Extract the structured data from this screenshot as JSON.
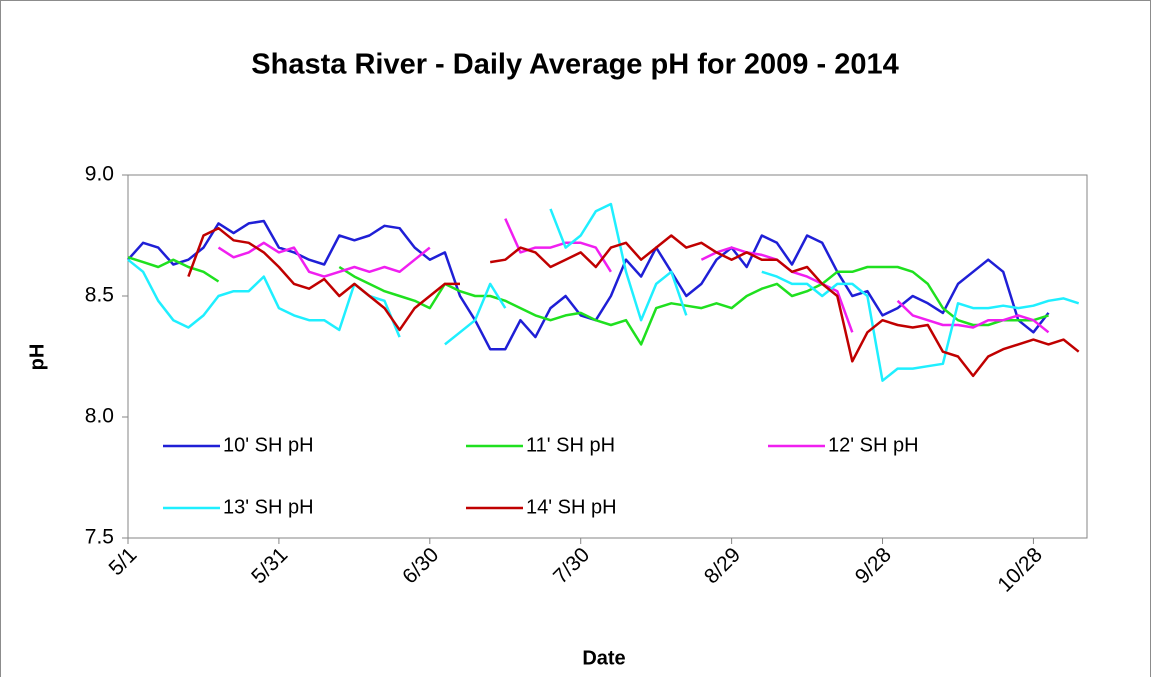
{
  "chart_data": {
    "type": "line",
    "title": "Shasta River - Daily Average pH for 2009 - 2014",
    "x_label": "Date",
    "y_label": "pH",
    "ylim": [
      7.5,
      9
    ],
    "yticks": [
      7.5,
      {
        "value": 8,
        "label": "8.0"
      },
      8.5,
      {
        "value": 9,
        "label": "9.0"
      }
    ],
    "categories": [
      "5/1",
      null,
      null,
      null,
      null,
      null,
      null,
      null,
      null,
      null,
      "5/31",
      null,
      null,
      null,
      null,
      null,
      null,
      null,
      null,
      null,
      "6/30",
      null,
      null,
      null,
      null,
      null,
      null,
      null,
      null,
      null,
      "7/30",
      null,
      null,
      null,
      null,
      null,
      null,
      null,
      null,
      null,
      "8/29",
      null,
      null,
      null,
      null,
      null,
      null,
      null,
      null,
      null,
      "9/28",
      null,
      null,
      null,
      null,
      null,
      null,
      null,
      null,
      null,
      "10/28",
      null,
      null,
      null
    ],
    "series": [
      {
        "name": "10' SH pH",
        "color": "#1f1fd6",
        "values": [
          8.65,
          8.72,
          8.7,
          8.63,
          8.65,
          8.7,
          8.8,
          8.76,
          8.8,
          8.81,
          8.7,
          8.68,
          8.65,
          8.63,
          8.75,
          8.73,
          8.75,
          8.79,
          8.78,
          8.7,
          8.65,
          8.68,
          8.5,
          8.4,
          8.28,
          8.28,
          8.4,
          8.33,
          8.45,
          8.5,
          8.42,
          8.4,
          8.5,
          8.65,
          8.58,
          8.7,
          8.6,
          8.5,
          8.55,
          8.65,
          8.7,
          8.62,
          8.75,
          8.72,
          8.63,
          8.75,
          8.72,
          8.6,
          8.5,
          8.52,
          8.42,
          8.45,
          8.5,
          8.47,
          8.43,
          8.55,
          8.6,
          8.65,
          8.6,
          8.4,
          8.35,
          8.43,
          null,
          null
        ]
      },
      {
        "name": "11' SH pH",
        "color": "#1fe01f",
        "values": [
          8.66,
          8.64,
          8.62,
          8.65,
          8.62,
          8.6,
          8.56,
          null,
          null,
          null,
          null,
          null,
          null,
          null,
          8.62,
          8.58,
          8.55,
          8.52,
          8.5,
          8.48,
          8.45,
          8.55,
          8.52,
          8.5,
          8.5,
          8.48,
          8.45,
          8.42,
          8.4,
          8.42,
          8.43,
          8.4,
          8.38,
          8.4,
          8.3,
          8.45,
          8.47,
          8.46,
          8.45,
          8.47,
          8.45,
          8.5,
          8.53,
          8.55,
          8.5,
          8.52,
          8.55,
          8.6,
          8.6,
          8.62,
          8.62,
          8.62,
          8.6,
          8.55,
          8.45,
          8.4,
          8.38,
          8.38,
          8.4,
          8.4,
          8.4,
          8.42,
          null,
          null
        ]
      },
      {
        "name": "12' SH pH",
        "color": "#f01ff0",
        "values": [
          null,
          null,
          null,
          null,
          null,
          null,
          8.7,
          8.66,
          8.68,
          8.72,
          8.68,
          8.7,
          8.6,
          8.58,
          8.6,
          8.62,
          8.6,
          8.62,
          8.6,
          8.65,
          8.7,
          null,
          null,
          null,
          null,
          8.82,
          8.68,
          8.7,
          8.7,
          8.72,
          8.72,
          8.7,
          8.6,
          null,
          null,
          null,
          null,
          null,
          8.65,
          8.68,
          8.7,
          8.68,
          8.67,
          8.65,
          8.6,
          8.58,
          8.55,
          8.52,
          8.35,
          null,
          null,
          8.48,
          8.42,
          8.4,
          8.38,
          8.38,
          8.37,
          8.4,
          8.4,
          8.42,
          8.4,
          8.35,
          null,
          null
        ]
      },
      {
        "name": "13' SH pH",
        "color": "#1fefff",
        "values": [
          8.65,
          8.6,
          8.48,
          8.4,
          8.37,
          8.42,
          8.5,
          8.52,
          8.52,
          8.58,
          8.45,
          8.42,
          8.4,
          8.4,
          8.36,
          8.55,
          8.5,
          8.48,
          8.33,
          null,
          null,
          8.3,
          8.35,
          8.4,
          8.55,
          8.45,
          null,
          null,
          8.86,
          8.7,
          8.75,
          8.85,
          8.88,
          8.6,
          8.4,
          8.55,
          8.6,
          8.42,
          null,
          null,
          null,
          null,
          8.6,
          8.58,
          8.55,
          8.55,
          8.5,
          8.55,
          8.55,
          8.5,
          8.15,
          8.2,
          8.2,
          8.21,
          8.22,
          8.47,
          8.45,
          8.45,
          8.46,
          8.45,
          8.46,
          8.48,
          8.49,
          8.47
        ]
      },
      {
        "name": "14' SH pH",
        "color": "#c00000",
        "values": [
          null,
          null,
          null,
          null,
          8.58,
          8.75,
          8.78,
          8.73,
          8.72,
          8.68,
          8.62,
          8.55,
          8.53,
          8.57,
          8.5,
          8.55,
          8.5,
          8.45,
          8.36,
          8.45,
          8.5,
          8.55,
          8.55,
          null,
          8.64,
          8.65,
          8.7,
          8.68,
          8.62,
          8.65,
          8.68,
          8.62,
          8.7,
          8.72,
          8.65,
          8.7,
          8.75,
          8.7,
          8.72,
          8.68,
          8.65,
          8.68,
          8.65,
          8.65,
          8.6,
          8.62,
          8.55,
          8.5,
          8.23,
          8.35,
          8.4,
          8.38,
          8.37,
          8.38,
          8.27,
          8.25,
          8.17,
          8.25,
          8.28,
          8.3,
          8.32,
          8.3,
          8.32,
          8.27
        ]
      }
    ]
  }
}
